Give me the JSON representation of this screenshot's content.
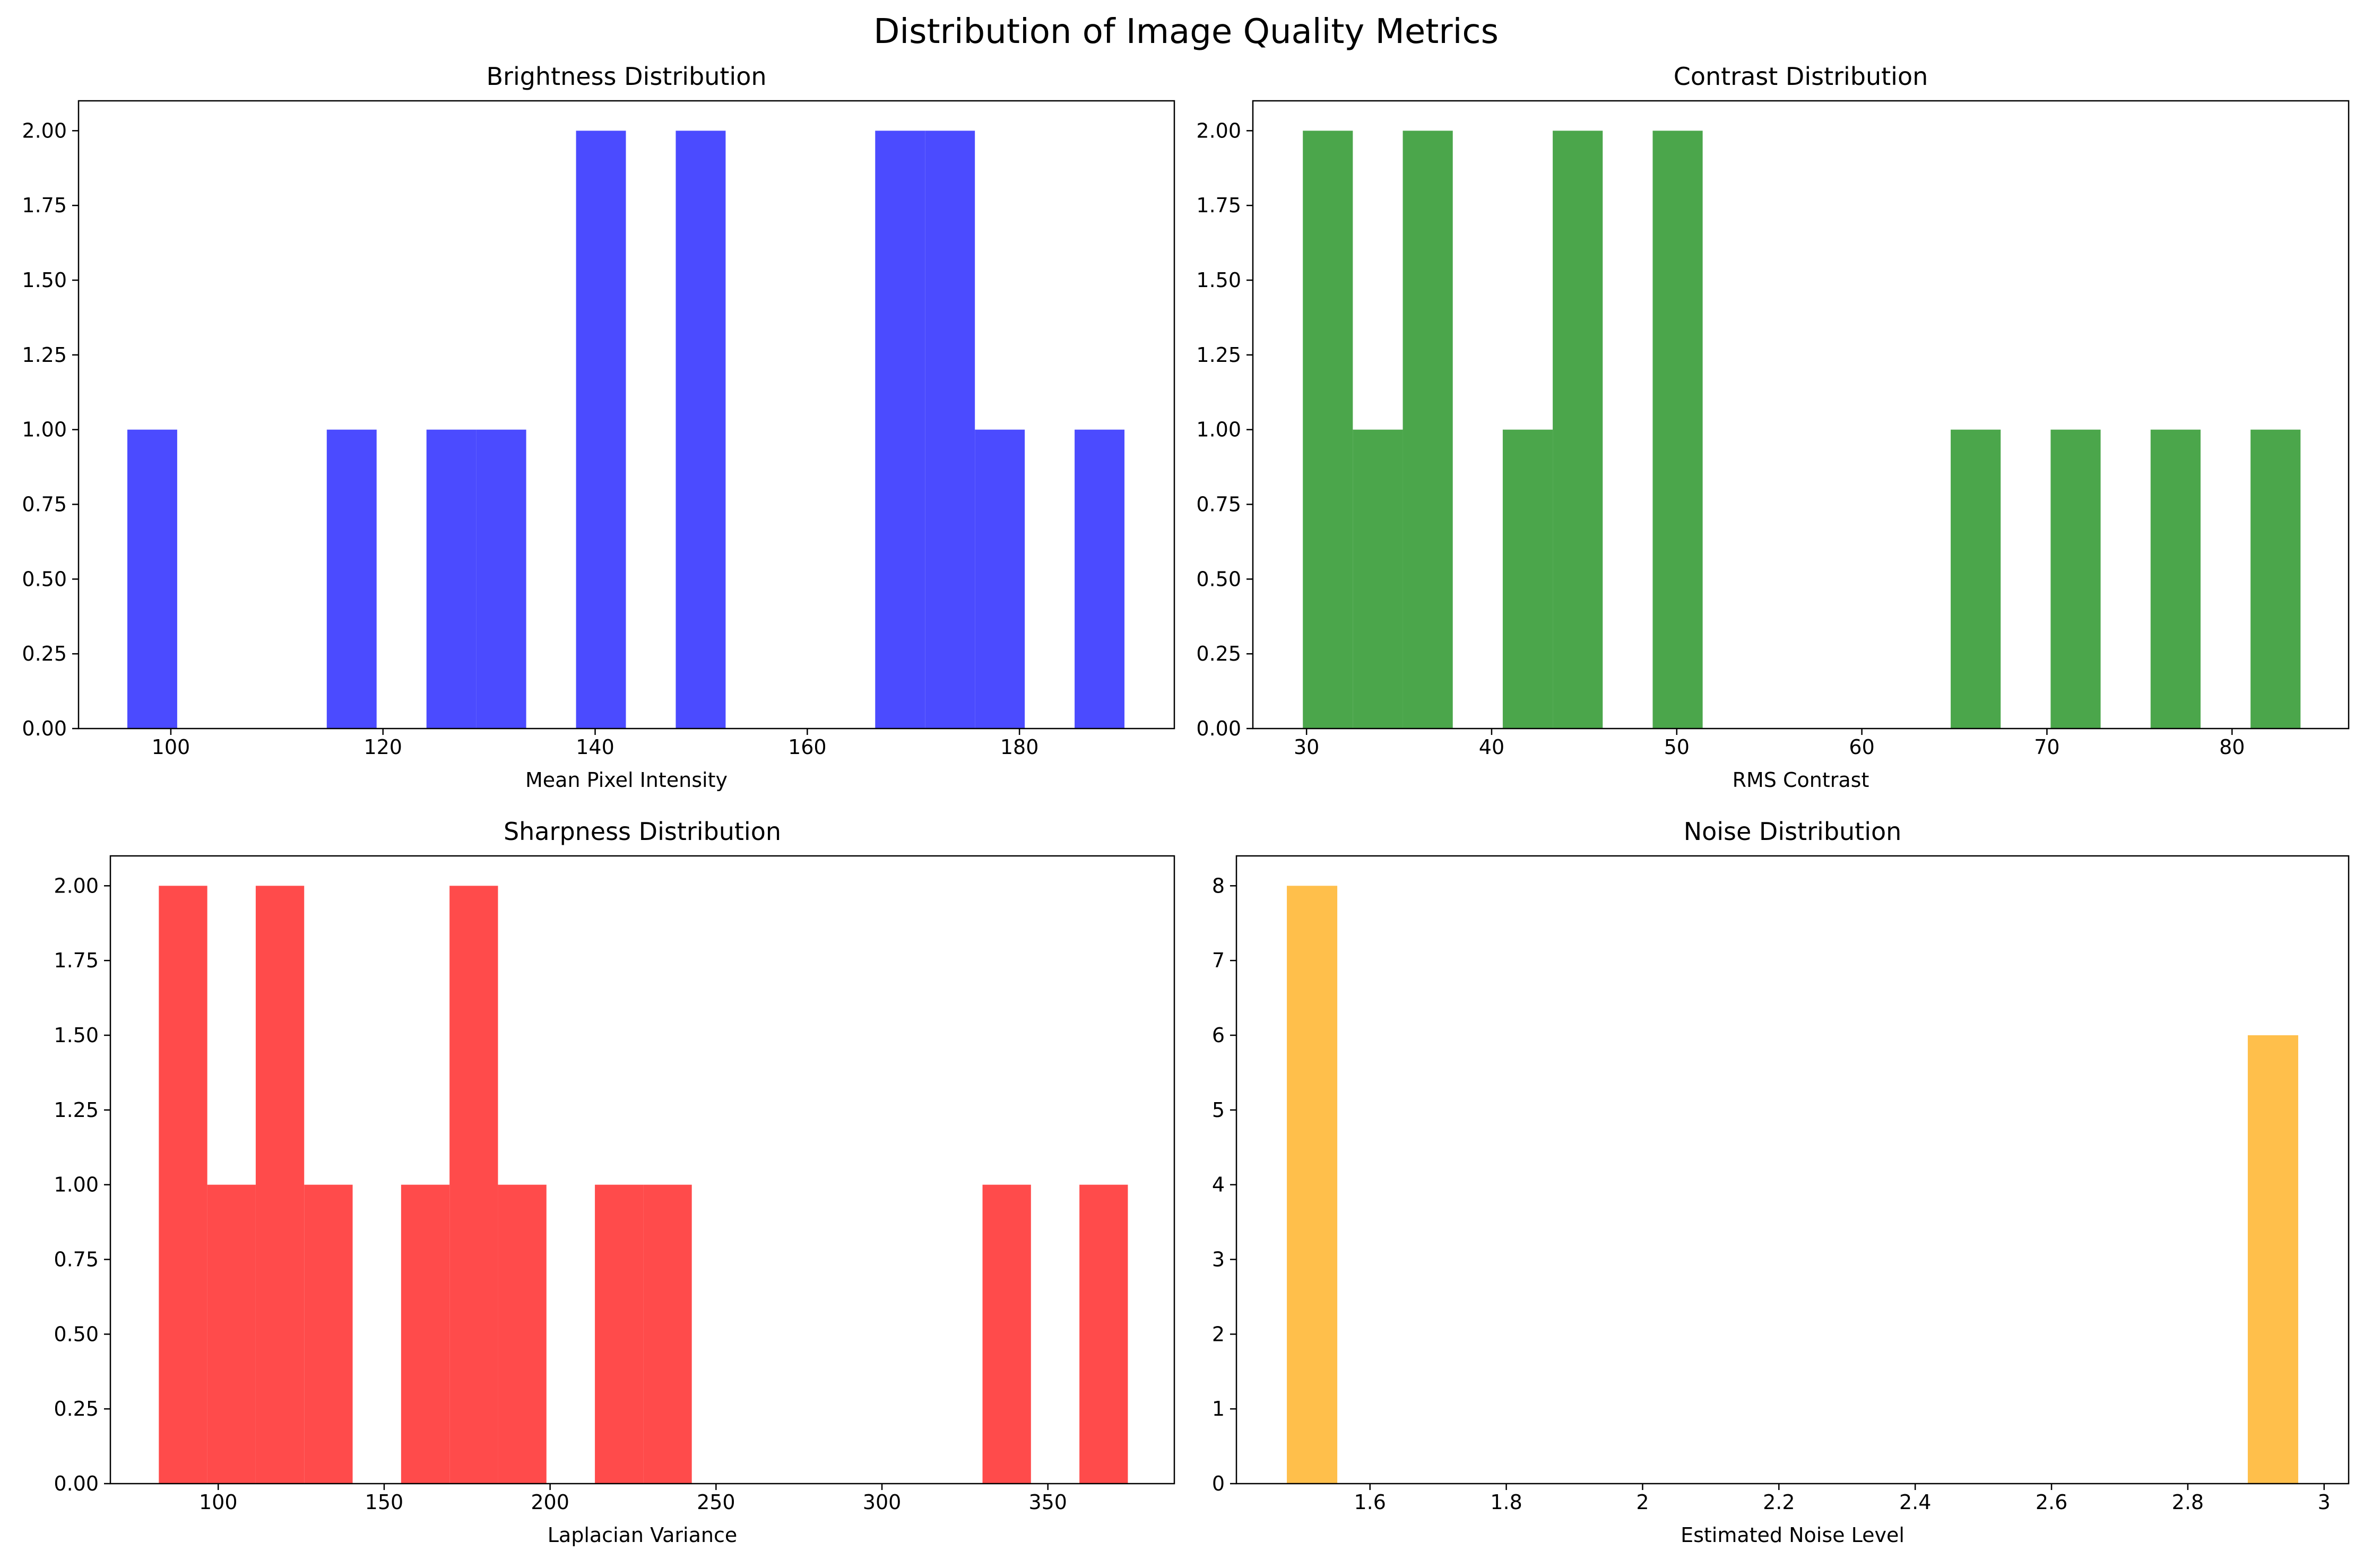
{
  "figure": {
    "title": "Distribution of Image Quality Metrics"
  },
  "chart_data": [
    {
      "type": "bar",
      "title": "Brightness Distribution",
      "xlabel": "Mean Pixel Intensity",
      "ylabel": "",
      "color": "#4b4bff",
      "xlim": [
        91.3,
        194.6
      ],
      "ylim": [
        0,
        2.1
      ],
      "xticks": [
        100,
        120,
        140,
        160,
        180
      ],
      "yticks": [
        0.0,
        0.25,
        0.5,
        0.75,
        1.0,
        1.25,
        1.5,
        1.75,
        2.0
      ],
      "ytick_decimals": 2,
      "bins": [
        {
          "x0": 95.9,
          "x1": 100.6,
          "count": 1
        },
        {
          "x0": 114.7,
          "x1": 119.4,
          "count": 1
        },
        {
          "x0": 124.1,
          "x1": 128.8,
          "count": 1
        },
        {
          "x0": 128.8,
          "x1": 133.5,
          "count": 1
        },
        {
          "x0": 138.2,
          "x1": 142.9,
          "count": 2
        },
        {
          "x0": 147.6,
          "x1": 152.3,
          "count": 2
        },
        {
          "x0": 166.4,
          "x1": 171.1,
          "count": 2
        },
        {
          "x0": 171.1,
          "x1": 175.8,
          "count": 2
        },
        {
          "x0": 175.8,
          "x1": 180.5,
          "count": 1
        },
        {
          "x0": 185.2,
          "x1": 189.9,
          "count": 1
        }
      ]
    },
    {
      "type": "bar",
      "title": "Contrast Distribution",
      "xlabel": "RMS Contrast",
      "ylabel": "",
      "color": "#4ba64b",
      "xlim": [
        27.1,
        86.3
      ],
      "ylim": [
        0,
        2.1
      ],
      "xticks": [
        30,
        40,
        50,
        60,
        70,
        80
      ],
      "yticks": [
        0.0,
        0.25,
        0.5,
        0.75,
        1.0,
        1.25,
        1.5,
        1.75,
        2.0
      ],
      "ytick_decimals": 2,
      "bins": [
        {
          "x0": 29.8,
          "x1": 32.5,
          "count": 2
        },
        {
          "x0": 32.5,
          "x1": 35.2,
          "count": 1
        },
        {
          "x0": 35.2,
          "x1": 37.9,
          "count": 2
        },
        {
          "x0": 40.6,
          "x1": 43.3,
          "count": 1
        },
        {
          "x0": 43.3,
          "x1": 46.0,
          "count": 2
        },
        {
          "x0": 48.7,
          "x1": 51.4,
          "count": 2
        },
        {
          "x0": 64.8,
          "x1": 67.5,
          "count": 1
        },
        {
          "x0": 70.2,
          "x1": 72.9,
          "count": 1
        },
        {
          "x0": 75.6,
          "x1": 78.3,
          "count": 1
        },
        {
          "x0": 81.0,
          "x1": 83.7,
          "count": 1
        }
      ]
    },
    {
      "type": "bar",
      "title": "Sharpness Distribution",
      "xlabel": "Laplacian Variance",
      "ylabel": "",
      "color": "#ff4b4b",
      "xlim": [
        67.5,
        388.1
      ],
      "ylim": [
        0,
        2.1
      ],
      "xticks": [
        100,
        150,
        200,
        250,
        300,
        350
      ],
      "yticks": [
        0.0,
        0.25,
        0.5,
        0.75,
        1.0,
        1.25,
        1.5,
        1.75,
        2.0
      ],
      "ytick_decimals": 2,
      "bins": [
        {
          "x0": 82.1,
          "x1": 96.7,
          "count": 2
        },
        {
          "x0": 96.7,
          "x1": 111.3,
          "count": 1
        },
        {
          "x0": 111.3,
          "x1": 125.9,
          "count": 2
        },
        {
          "x0": 125.9,
          "x1": 140.5,
          "count": 1
        },
        {
          "x0": 155.1,
          "x1": 169.7,
          "count": 1
        },
        {
          "x0": 169.7,
          "x1": 184.3,
          "count": 2
        },
        {
          "x0": 184.3,
          "x1": 198.9,
          "count": 1
        },
        {
          "x0": 213.5,
          "x1": 228.1,
          "count": 1
        },
        {
          "x0": 228.1,
          "x1": 242.7,
          "count": 1
        },
        {
          "x0": 330.3,
          "x1": 344.9,
          "count": 1
        },
        {
          "x0": 359.5,
          "x1": 374.1,
          "count": 1
        }
      ]
    },
    {
      "type": "bar",
      "title": "Noise Distribution",
      "xlabel": "Estimated Noise Level",
      "ylabel": "",
      "color": "#ffbf4b",
      "xlim": [
        1.404,
        3.036
      ],
      "ylim": [
        0,
        8.4
      ],
      "xticks": [
        1.6,
        1.8,
        2.0,
        2.2,
        2.4,
        2.6,
        2.8,
        3.0
      ],
      "yticks": [
        0,
        1,
        2,
        3,
        4,
        5,
        6,
        7,
        8
      ],
      "ytick_decimals": 0,
      "bins": [
        {
          "x0": 1.478,
          "x1": 1.552,
          "count": 8
        },
        {
          "x0": 2.888,
          "x1": 2.962,
          "count": 6
        }
      ]
    }
  ]
}
